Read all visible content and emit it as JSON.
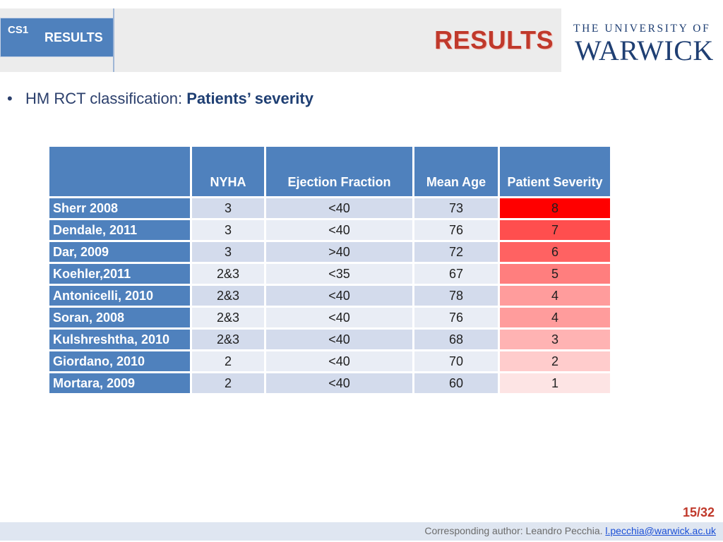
{
  "header": {
    "tab_code": "CS1",
    "tab_label": "RESULTS",
    "title": "RESULTS",
    "logo_line1": "THE UNIVERSITY OF",
    "logo_line2": "WARWICK"
  },
  "bullet": {
    "lead": "HM RCT classification: ",
    "strong": "Patients’ severity"
  },
  "table": {
    "columns": [
      "",
      "NYHA",
      "Ejection Fraction",
      "Mean Age",
      "Patient Severity"
    ],
    "rows": [
      {
        "study": "Sherr 2008",
        "nyha": "3",
        "ef": "<40",
        "age": "73",
        "severity": "8",
        "sev_color": "#ff0000"
      },
      {
        "study": "Dendale, 2011",
        "nyha": "3",
        "ef": "<40",
        "age": "76",
        "severity": "7",
        "sev_color": "#ff4e4e"
      },
      {
        "study": "Dar, 2009",
        "nyha": "3",
        "ef": ">40",
        "age": "72",
        "severity": "6",
        "sev_color": "#ff6262"
      },
      {
        "study": "Koehler,2011",
        "nyha": "2&3",
        "ef": "<35",
        "age": "67",
        "severity": "5",
        "sev_color": "#ff7e7e"
      },
      {
        "study": "Antonicelli, 2010",
        "nyha": "2&3",
        "ef": "<40",
        "age": "78",
        "severity": "4",
        "sev_color": "#ff9c9c"
      },
      {
        "study": "Soran, 2008",
        "nyha": "2&3",
        "ef": "<40",
        "age": "76",
        "severity": "4",
        "sev_color": "#ff9c9c"
      },
      {
        "study": "Kulshreshtha, 2010",
        "nyha": "2&3",
        "ef": "<40",
        "age": "68",
        "severity": "3",
        "sev_color": "#ffb3b3"
      },
      {
        "study": "Giordano, 2010",
        "nyha": "2",
        "ef": "<40",
        "age": "70",
        "severity": "2",
        "sev_color": "#ffcccc"
      },
      {
        "study": "Mortara, 2009",
        "nyha": "2",
        "ef": "<40",
        "age": "60",
        "severity": "1",
        "sev_color": "#fde4e4"
      }
    ]
  },
  "page_number": "15/32",
  "footer": {
    "text": "Corresponding author: Leandro Pecchia. ",
    "email": "l.pecchia@warwick.ac.uk"
  }
}
